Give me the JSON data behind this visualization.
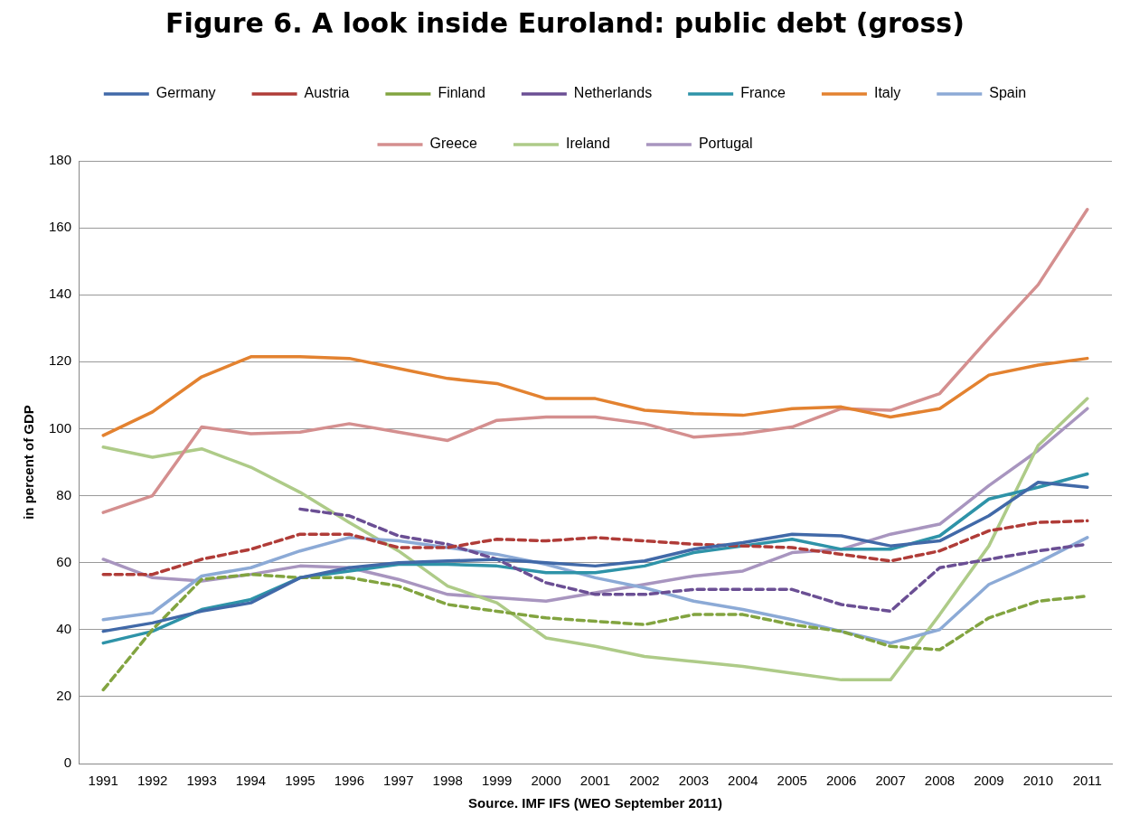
{
  "chart_data": {
    "type": "line",
    "title": "Figure 6. A look inside Euroland: public debt (gross)",
    "ylabel": "in percent of GDP",
    "annotations": [
      "Source. IMF IFS (WEO September 2011)"
    ],
    "categories": [
      "1991",
      "1992",
      "1993",
      "1994",
      "1995",
      "1996",
      "1997",
      "1998",
      "1999",
      "2000",
      "2001",
      "2002",
      "2003",
      "2004",
      "2005",
      "2006",
      "2007",
      "2008",
      "2009",
      "2010",
      "2011"
    ],
    "series": [
      {
        "name": "Germany",
        "color": "#4169a8",
        "line_style": "solid",
        "values": [
          39.5,
          42,
          45.5,
          48,
          55.5,
          58.5,
          60,
          60.5,
          61,
          60,
          59,
          60.5,
          64,
          66,
          68.5,
          68,
          65,
          66.5,
          74,
          84,
          82.5
        ]
      },
      {
        "name": "Austria",
        "color": "#b03c38",
        "line_style": "dashed",
        "values": [
          56.5,
          56.5,
          61,
          64,
          68.5,
          68.5,
          64.5,
          64.5,
          67,
          66.5,
          67.5,
          66.5,
          65.5,
          65,
          64.5,
          62.5,
          60.5,
          63.5,
          69.5,
          72,
          72.5
        ]
      },
      {
        "name": "Finland",
        "color": "#82a440",
        "line_style": "dashed",
        "values": [
          22,
          40,
          55,
          56.5,
          55.5,
          55.5,
          53,
          47.5,
          45.5,
          43.5,
          42.5,
          41.5,
          44.5,
          44.5,
          41.5,
          39.5,
          35,
          34,
          43.5,
          48.5,
          50
        ]
      },
      {
        "name": "Netherlands",
        "color": "#6b4f94",
        "line_style": "dashed",
        "values": [
          null,
          null,
          null,
          null,
          76,
          74,
          68,
          65.5,
          61,
          54,
          50.5,
          50.5,
          52,
          52,
          52,
          47.5,
          45.5,
          58.5,
          61,
          63.5,
          65.5
        ]
      },
      {
        "name": "France",
        "color": "#2e93a8",
        "line_style": "solid",
        "values": [
          36,
          39.5,
          46,
          49,
          55.5,
          57.5,
          59.5,
          59.5,
          59,
          57,
          57,
          59,
          63,
          65,
          67,
          64,
          64,
          68,
          79,
          82.5,
          86.5
        ]
      },
      {
        "name": "Italy",
        "color": "#e38230",
        "line_style": "solid",
        "values": [
          98,
          105,
          115.5,
          121.5,
          121.5,
          121,
          118,
          115,
          113.5,
          109,
          109,
          105.5,
          104.5,
          104,
          106,
          106.5,
          103.5,
          106,
          116,
          119,
          121
        ]
      },
      {
        "name": "Spain",
        "color": "#8caad6",
        "line_style": "solid",
        "values": [
          43,
          45,
          56,
          58.5,
          63.5,
          67.5,
          66.5,
          64.5,
          62.5,
          59.5,
          55.5,
          52.5,
          48.5,
          46,
          43,
          39.5,
          36,
          40,
          53.5,
          60,
          67.5
        ]
      },
      {
        "name": "Greece",
        "color": "#d48f8f",
        "line_style": "solid",
        "values": [
          75,
          80,
          100.5,
          98.5,
          99,
          101.5,
          99,
          96.5,
          102.5,
          103.5,
          103.5,
          101.5,
          97.5,
          98.5,
          100.5,
          106,
          105.5,
          110.5,
          127,
          143,
          165.5
        ]
      },
      {
        "name": "Ireland",
        "color": "#aecb88",
        "line_style": "solid",
        "values": [
          94.5,
          91.5,
          94,
          88.5,
          81,
          72,
          63.5,
          53,
          48,
          37.5,
          35,
          32,
          30.5,
          29,
          27,
          25,
          25,
          44.5,
          65,
          95,
          109
        ]
      },
      {
        "name": "Portugal",
        "color": "#a895bf",
        "line_style": "solid",
        "values": [
          61,
          55.5,
          54.5,
          56.5,
          59,
          58.5,
          55,
          50.5,
          49.5,
          48.5,
          51,
          53.5,
          56,
          57.5,
          63,
          64,
          68.5,
          71.5,
          83,
          93.5,
          106
        ]
      }
    ],
    "ylim": [
      0,
      180
    ],
    "yticks": [
      0,
      20,
      40,
      60,
      80,
      100,
      120,
      140,
      160,
      180
    ],
    "grid": "y",
    "legend": "top",
    "marker": "none"
  }
}
